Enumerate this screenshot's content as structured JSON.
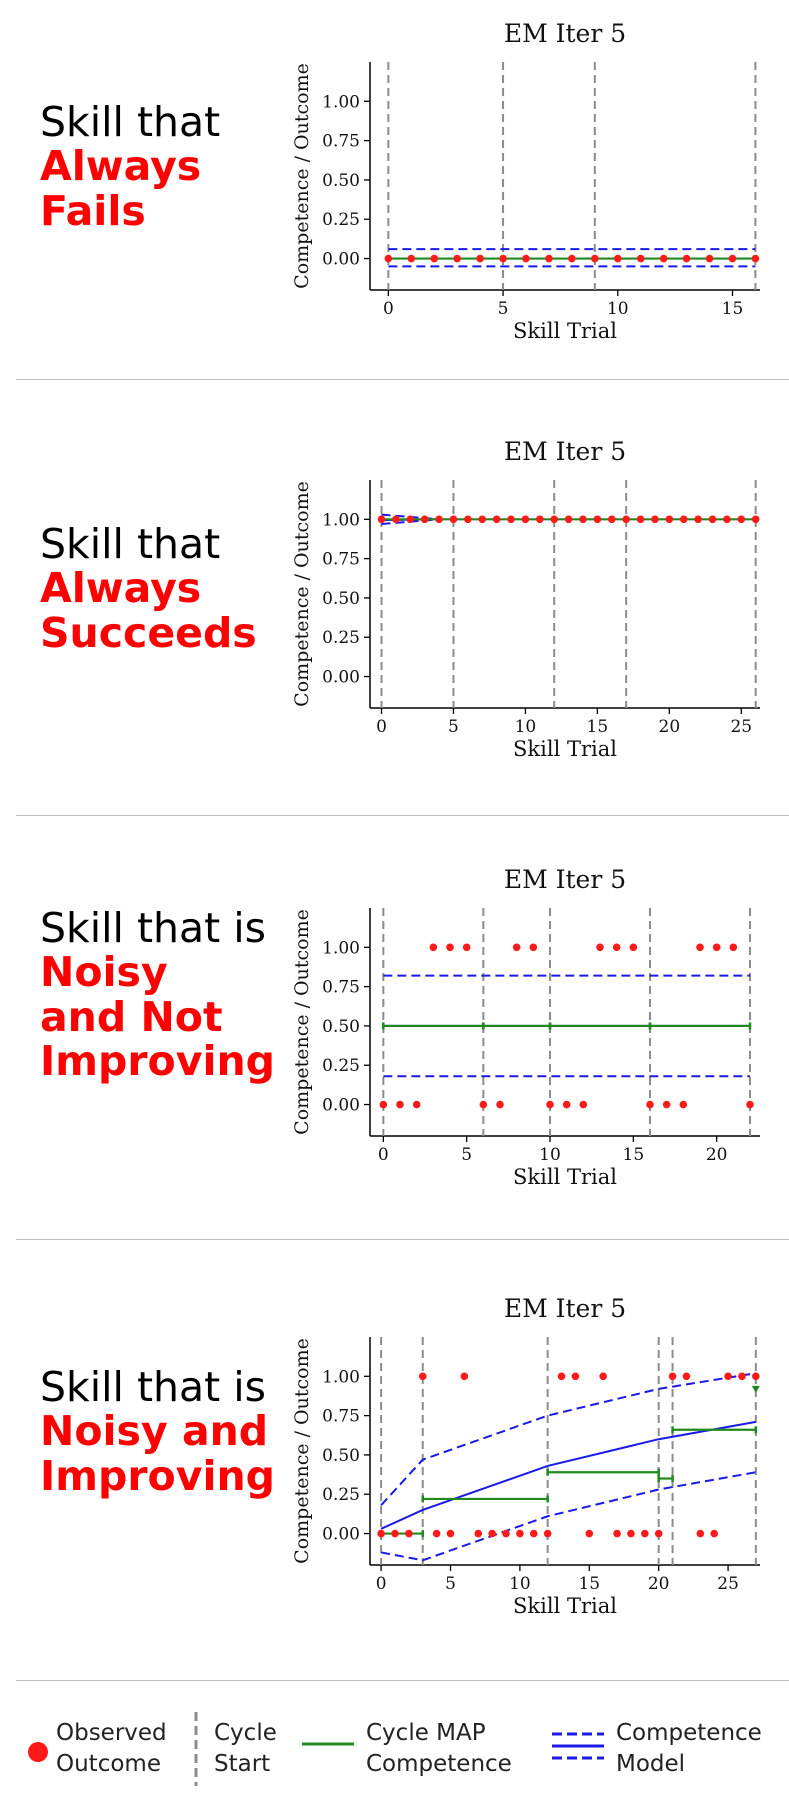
{
  "panels": [
    {
      "desc": {
        "plain": "Skill that",
        "highlight": [
          "Always",
          "Fails"
        ]
      },
      "chart": {
        "type": "scatter",
        "title": "EM Iter 5",
        "xlabel": "Skill Trial",
        "ylabel": "Competence / Outcome",
        "xlim": [
          -0.8,
          16.2
        ],
        "ylim": [
          -0.2,
          1.25
        ],
        "xticks": [
          0,
          5,
          10,
          15
        ],
        "yticks": [
          0.0,
          0.25,
          0.5,
          0.75,
          1.0
        ],
        "ytick_labels": [
          "0.00",
          "0.25",
          "0.50",
          "0.75",
          "1.00"
        ],
        "cycle_starts": [
          0,
          5,
          9,
          16
        ],
        "outcomes": {
          "x": [
            0,
            1,
            2,
            3,
            4,
            5,
            6,
            7,
            8,
            9,
            10,
            11,
            12,
            13,
            14,
            15,
            16
          ],
          "y": [
            0,
            0,
            0,
            0,
            0,
            0,
            0,
            0,
            0,
            0,
            0,
            0,
            0,
            0,
            0,
            0,
            0
          ]
        },
        "cycle_map": [
          {
            "x": [
              0,
              5
            ],
            "y": 0.0
          },
          {
            "x": [
              5,
              9
            ],
            "y": 0.0
          },
          {
            "x": [
              9,
              16
            ],
            "y": 0.0
          }
        ],
        "model_mean": {
          "x": [
            0,
            16
          ],
          "y": [
            0.0,
            0.0
          ]
        },
        "model_upper": {
          "x": [
            0,
            16
          ],
          "y": [
            0.06,
            0.06
          ]
        },
        "model_lower": {
          "x": [
            0,
            16
          ],
          "y": [
            -0.05,
            -0.05
          ]
        }
      }
    },
    {
      "desc": {
        "plain": "Skill that",
        "highlight": [
          "Always",
          "Succeeds"
        ]
      },
      "chart": {
        "type": "scatter",
        "title": "EM Iter 5",
        "xlabel": "Skill Trial",
        "ylabel": "Competence / Outcome",
        "xlim": [
          -0.8,
          26.3
        ],
        "ylim": [
          -0.2,
          1.25
        ],
        "xticks": [
          0,
          5,
          10,
          15,
          20,
          25
        ],
        "yticks": [
          0.0,
          0.25,
          0.5,
          0.75,
          1.0
        ],
        "ytick_labels": [
          "0.00",
          "0.25",
          "0.50",
          "0.75",
          "1.00"
        ],
        "cycle_starts": [
          0,
          5,
          12,
          17,
          26
        ],
        "outcomes": {
          "x": [
            0,
            1,
            2,
            3,
            4,
            5,
            6,
            7,
            8,
            9,
            10,
            11,
            12,
            13,
            14,
            15,
            16,
            17,
            18,
            19,
            20,
            21,
            22,
            23,
            24,
            25,
            26
          ],
          "y": [
            1,
            1,
            1,
            1,
            1,
            1,
            1,
            1,
            1,
            1,
            1,
            1,
            1,
            1,
            1,
            1,
            1,
            1,
            1,
            1,
            1,
            1,
            1,
            1,
            1,
            1,
            1
          ]
        },
        "cycle_map": [
          {
            "x": [
              0,
              5
            ],
            "y": 1.0
          },
          {
            "x": [
              5,
              12
            ],
            "y": 1.0
          },
          {
            "x": [
              12,
              17
            ],
            "y": 1.0
          },
          {
            "x": [
              17,
              26
            ],
            "y": 1.0
          }
        ],
        "model_mean": {
          "x": [
            0,
            4
          ],
          "y": [
            0.995,
            1.0
          ]
        },
        "model_upper": {
          "x": [
            0,
            4
          ],
          "y": [
            1.03,
            1.0
          ]
        },
        "model_lower": {
          "x": [
            0,
            4
          ],
          "y": [
            0.97,
            1.0
          ]
        }
      }
    },
    {
      "desc": {
        "plain": "Skill that is",
        "highlight": [
          "Noisy",
          "and Not",
          "Improving"
        ]
      },
      "chart": {
        "type": "scatter",
        "title": "EM Iter 5",
        "xlabel": "Skill Trial",
        "ylabel": "Competence / Outcome",
        "xlim": [
          -0.8,
          22.6
        ],
        "ylim": [
          -0.2,
          1.25
        ],
        "xticks": [
          0,
          5,
          10,
          15,
          20
        ],
        "yticks": [
          0.0,
          0.25,
          0.5,
          0.75,
          1.0
        ],
        "ytick_labels": [
          "0.00",
          "0.25",
          "0.50",
          "0.75",
          "1.00"
        ],
        "cycle_starts": [
          0,
          6,
          10,
          16,
          22
        ],
        "outcomes": {
          "x": [
            0,
            1,
            2,
            3,
            4,
            5,
            6,
            7,
            8,
            9,
            10,
            11,
            12,
            13,
            14,
            15,
            16,
            17,
            18,
            19,
            20,
            21,
            22
          ],
          "y": [
            0,
            0,
            0,
            1,
            1,
            1,
            0,
            0,
            1,
            1,
            0,
            0,
            0,
            1,
            1,
            1,
            0,
            0,
            0,
            1,
            1,
            1,
            0
          ]
        },
        "cycle_map": [
          {
            "x": [
              0,
              6
            ],
            "y": 0.5
          },
          {
            "x": [
              6,
              10
            ],
            "y": 0.5
          },
          {
            "x": [
              10,
              16
            ],
            "y": 0.5
          },
          {
            "x": [
              16,
              22
            ],
            "y": 0.5
          }
        ],
        "model_mean": {
          "x": [
            0,
            22
          ],
          "y": [
            0.5,
            0.5
          ]
        },
        "model_upper": {
          "x": [
            0,
            22
          ],
          "y": [
            0.82,
            0.82
          ]
        },
        "model_lower": {
          "x": [
            0,
            22
          ],
          "y": [
            0.18,
            0.18
          ]
        }
      }
    },
    {
      "desc": {
        "plain": "Skill that is",
        "highlight": [
          "Noisy and",
          "Improving"
        ]
      },
      "chart": {
        "type": "scatter",
        "title": "EM Iter 5",
        "xlabel": "Skill Trial",
        "ylabel": "Competence / Outcome",
        "xlim": [
          -0.8,
          27.3
        ],
        "ylim": [
          -0.2,
          1.25
        ],
        "xticks": [
          0,
          5,
          10,
          15,
          20,
          25
        ],
        "yticks": [
          0.0,
          0.25,
          0.5,
          0.75,
          1.0
        ],
        "ytick_labels": [
          "0.00",
          "0.25",
          "0.50",
          "0.75",
          "1.00"
        ],
        "cycle_starts": [
          0,
          3,
          12,
          20,
          21,
          27
        ],
        "outcomes": {
          "x": [
            0,
            1,
            2,
            3,
            4,
            5,
            6,
            7,
            8,
            9,
            10,
            11,
            12,
            13,
            14,
            15,
            16,
            17,
            18,
            19,
            20,
            21,
            22,
            23,
            24,
            25,
            26,
            27
          ],
          "y": [
            0,
            0,
            0,
            1,
            0,
            0,
            1,
            0,
            0,
            0,
            0,
            0,
            0,
            1,
            1,
            0,
            1,
            0,
            0,
            0,
            0,
            1,
            1,
            0,
            0,
            1,
            1,
            1
          ]
        },
        "cycle_map": [
          {
            "x": [
              0,
              3
            ],
            "y": 0.0
          },
          {
            "x": [
              3,
              12
            ],
            "y": 0.22
          },
          {
            "x": [
              12,
              20
            ],
            "y": 0.39
          },
          {
            "x": [
              20,
              21
            ],
            "y": 0.35
          },
          {
            "x": [
              21,
              27
            ],
            "y": 0.66
          }
        ],
        "final_map_point": {
          "x": 27,
          "y": 0.92
        },
        "model_mean": {
          "x": [
            0,
            3,
            12,
            20,
            27
          ],
          "y": [
            0.03,
            0.15,
            0.43,
            0.6,
            0.71
          ]
        },
        "model_upper": {
          "x": [
            0,
            3,
            12,
            20,
            27
          ],
          "y": [
            0.18,
            0.47,
            0.75,
            0.92,
            1.02
          ]
        },
        "model_lower": {
          "x": [
            0,
            3,
            12,
            20,
            27
          ],
          "y": [
            -0.12,
            -0.17,
            0.11,
            0.28,
            0.39
          ]
        }
      }
    }
  ],
  "legend": {
    "observed": [
      "Observed",
      "Outcome"
    ],
    "cycle_start": [
      "Cycle",
      "Start"
    ],
    "cycle_map": [
      "Cycle MAP",
      "Competence"
    ],
    "competence_model": [
      "Competence",
      "Model"
    ]
  },
  "colors": {
    "highlight": "#ff0000",
    "outcome": "#ff1a1a",
    "cycle_start": "#8c8c8c",
    "cycle_map": "#1e8a1e",
    "model": "#1a1ae6",
    "separator": "#bdbdbd"
  }
}
